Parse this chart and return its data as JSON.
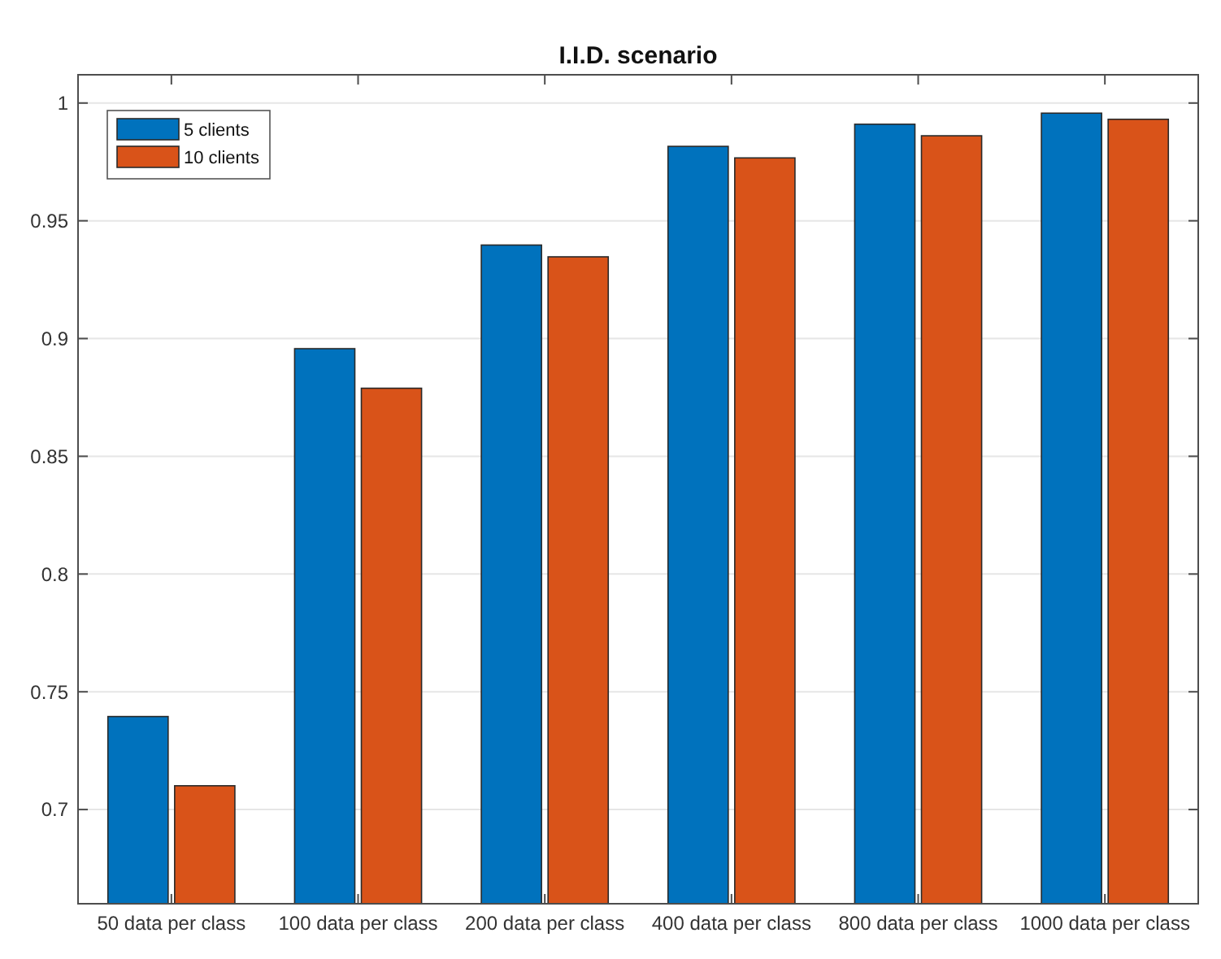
{
  "chart_data": {
    "type": "bar",
    "title": "I.I.D. scenario",
    "categories": [
      "50 data per class",
      "100 data per class",
      "200 data per class",
      "400 data per class",
      "800 data per class",
      "1000 data per class"
    ],
    "series": [
      {
        "name": "5 clients",
        "color": "#0072bd",
        "values": [
          0.7395,
          0.8957,
          0.9397,
          0.9816,
          0.991,
          0.9957
        ]
      },
      {
        "name": "10 clients",
        "color": "#d95319",
        "values": [
          0.7101,
          0.8789,
          0.9347,
          0.9767,
          0.9861,
          0.9931
        ]
      }
    ],
    "ylim": [
      0.66,
      1.012
    ],
    "yticks": [
      0.7,
      0.75,
      0.8,
      0.85,
      0.9,
      0.95,
      1
    ],
    "grid": "y",
    "legend": "top left"
  }
}
